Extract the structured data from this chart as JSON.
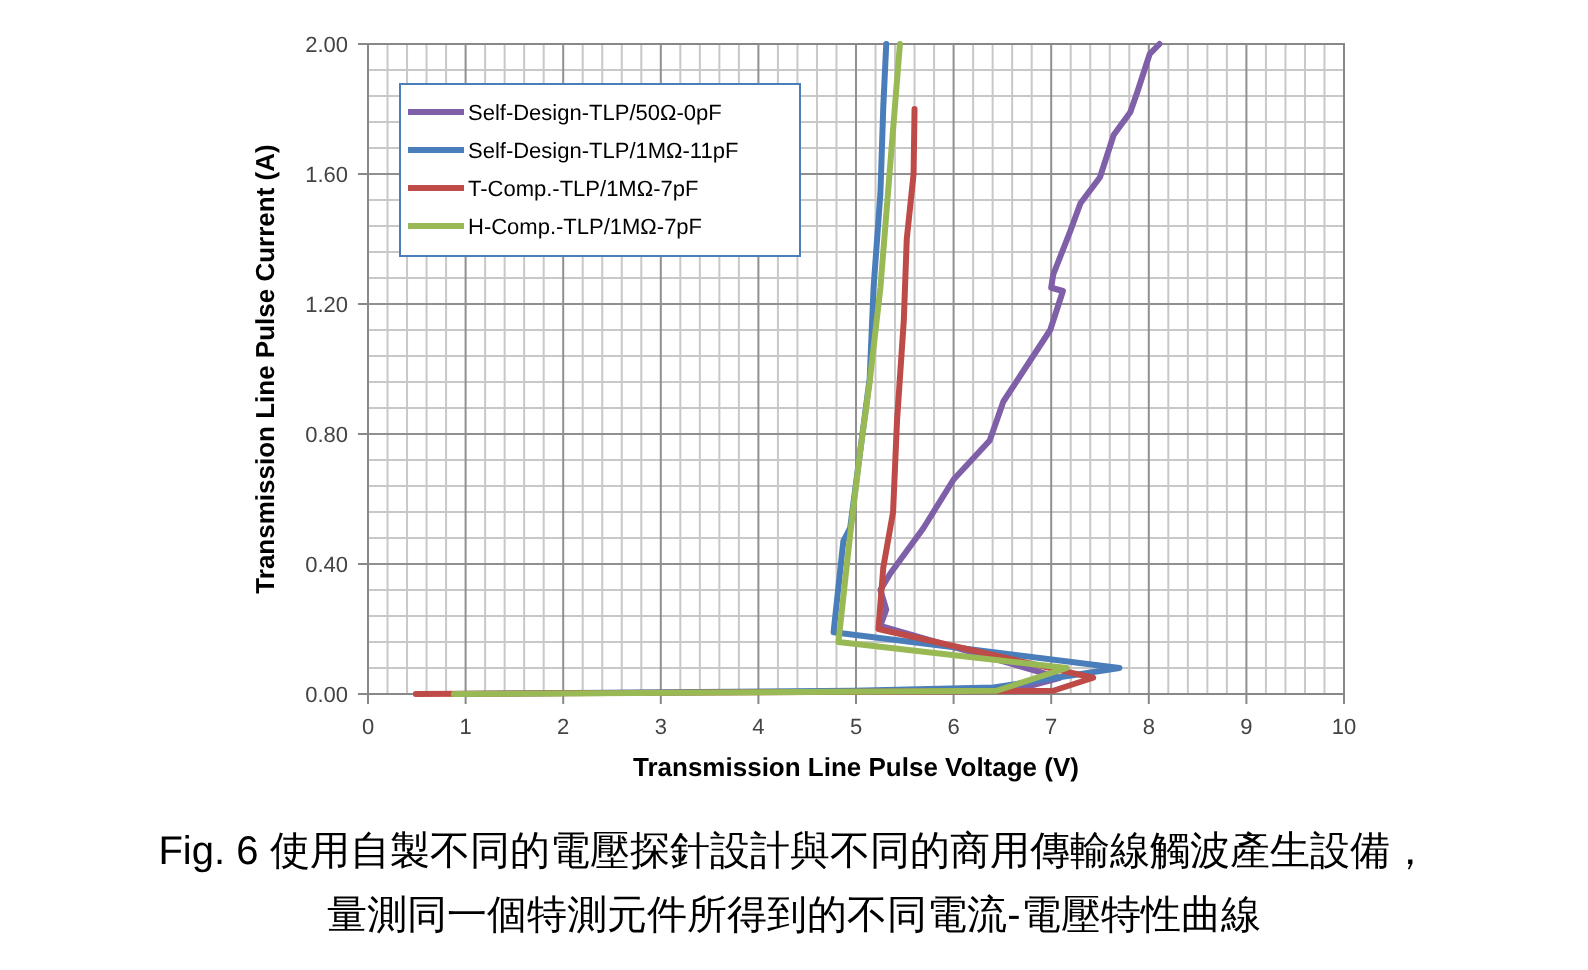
{
  "chart_data": {
    "type": "line",
    "xlabel": "Transmission Line Pulse Voltage (V)",
    "ylabel": "Transmission Line Pulse Current (A)",
    "xlim": [
      0,
      10
    ],
    "xticks": [
      0,
      1,
      2,
      3,
      4,
      5,
      6,
      7,
      8,
      9,
      10
    ],
    "ylim": [
      0,
      2
    ],
    "yticks": [
      {
        "value": 0,
        "label": "0.00"
      },
      {
        "value": 0.4,
        "label": "0.40"
      },
      {
        "value": 0.8,
        "label": "0.80"
      },
      {
        "value": 1.2,
        "label": "1.20"
      },
      {
        "value": 1.6,
        "label": "1.60"
      },
      {
        "value": 2,
        "label": "2.00"
      }
    ],
    "grid": true,
    "legend": "top left",
    "marker": "none",
    "line_style": "solid",
    "series": [
      {
        "name": "Self-Design-TLP/50Ω-0pF",
        "color": "#7f5fa8",
        "x": [
          8.11,
          8.01,
          7.88,
          7.81,
          7.64,
          7.5,
          7.3,
          7.19,
          7.02,
          7.0,
          7.12,
          6.99,
          6.75,
          6.51,
          6.37,
          6.0,
          5.69,
          5.35,
          5.25,
          5.31,
          5.25,
          7.09,
          6.6
        ],
        "values": [
          2.0,
          1.97,
          1.85,
          1.79,
          1.72,
          1.59,
          1.51,
          1.42,
          1.29,
          1.25,
          1.24,
          1.12,
          1.01,
          0.9,
          0.78,
          0.66,
          0.51,
          0.37,
          0.32,
          0.26,
          0.21,
          0.05,
          0.01
        ]
      },
      {
        "name": "Self-Design-TLP/1MΩ-11pF",
        "color": "#4a7ebb",
        "x": [
          5.31,
          5.28,
          5.25,
          5.18,
          5.14,
          5.04,
          4.94,
          4.87,
          4.77,
          7.7,
          6.41,
          4.97,
          0.88
        ],
        "values": [
          2.0,
          1.81,
          1.54,
          1.25,
          0.97,
          0.74,
          0.51,
          0.47,
          0.19,
          0.08,
          0.02,
          0.01,
          0
        ]
      },
      {
        "name": "T-Comp.-TLP/1MΩ-7pF",
        "color": "#be4b48",
        "x": [
          5.6,
          5.59,
          5.52,
          5.49,
          5.42,
          5.38,
          5.28,
          5.23,
          7.43,
          7.02,
          0.49
        ],
        "values": [
          1.8,
          1.6,
          1.4,
          1.15,
          0.84,
          0.56,
          0.39,
          0.2,
          0.05,
          0.01,
          0
        ]
      },
      {
        "name": "H-Comp.-TLP/1MΩ-7pF",
        "color": "#98b954",
        "x": [
          5.45,
          5.25,
          5.14,
          5.04,
          4.94,
          4.82,
          7.16,
          6.44,
          0.88
        ],
        "values": [
          2.0,
          1.25,
          0.96,
          0.74,
          0.49,
          0.16,
          0.08,
          0.01,
          0
        ]
      }
    ],
    "annotations": [
      "Fig. 6 使用自製不同的電壓探針設計與不同的商用傳輸線觸波產生設備，",
      "量測同一個特測元件所得到的不同電流-電壓特性曲線"
    ]
  }
}
